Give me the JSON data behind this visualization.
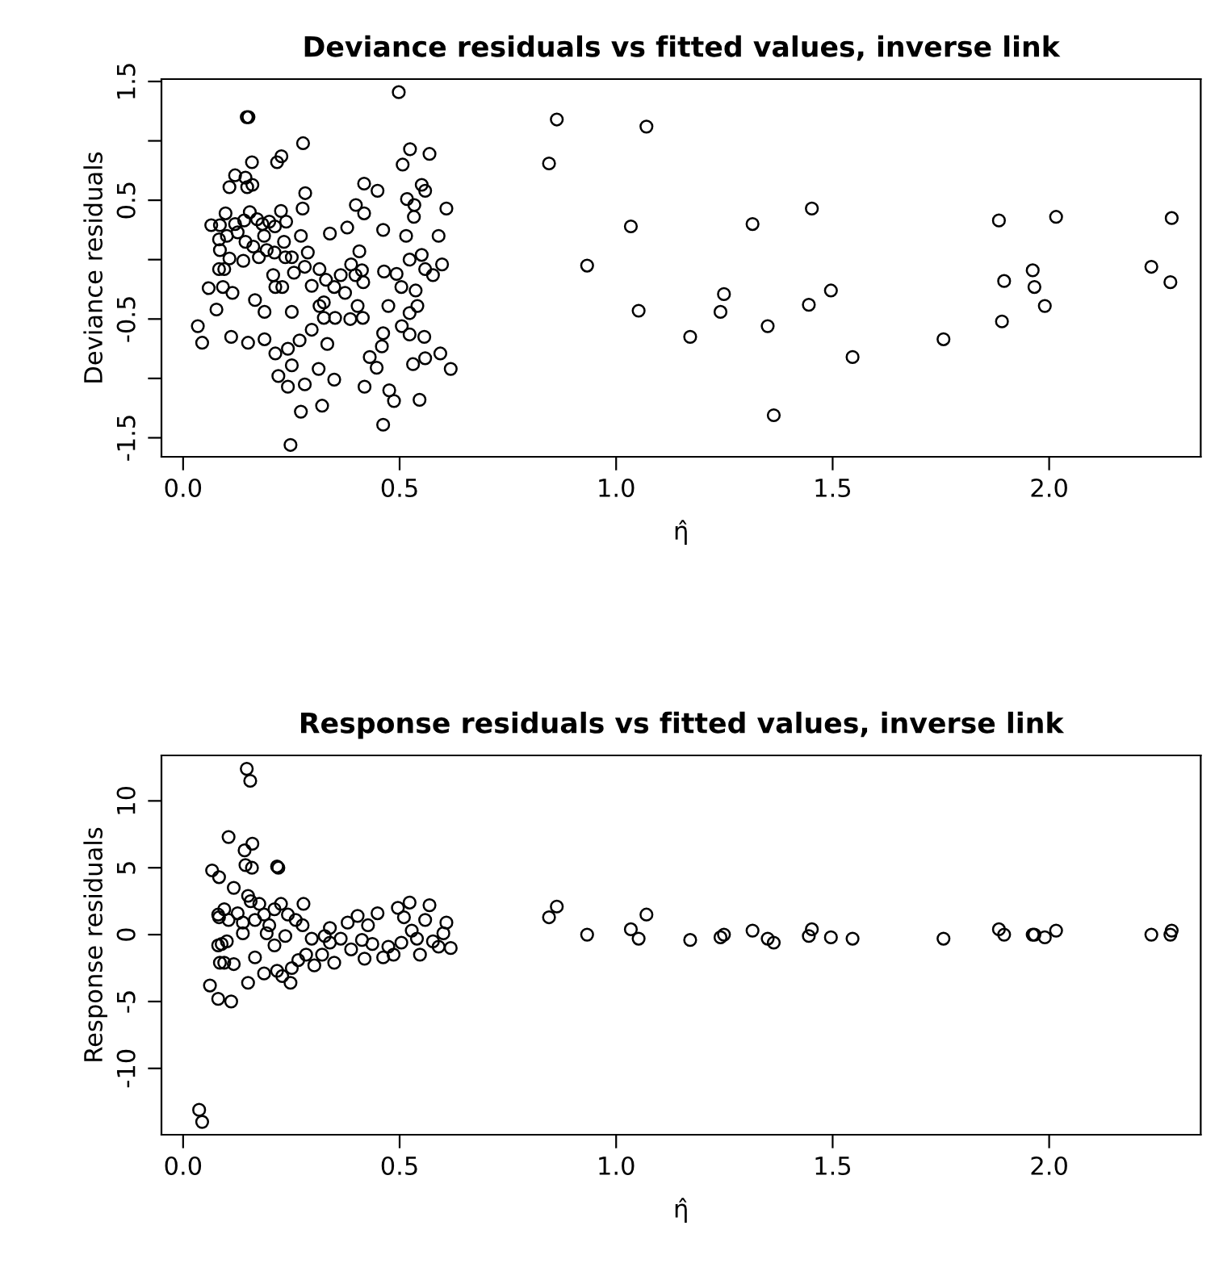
{
  "chart_data": [
    {
      "type": "scatter",
      "title": "Deviance residuals vs fitted values, inverse link",
      "xlabel": "η̂",
      "ylabel": "Deviance residuals",
      "marker": "circle",
      "xlim": [
        -0.05,
        2.35
      ],
      "xticks": [
        {
          "value": 0,
          "label": "0.0"
        },
        {
          "value": 0.5,
          "label": "0.5"
        },
        {
          "value": 1,
          "label": "1.0"
        },
        {
          "value": 1.5,
          "label": "1.5"
        },
        {
          "value": 2,
          "label": "2.0"
        }
      ],
      "ylim": [
        -1.66,
        1.52
      ],
      "yticks": [
        {
          "value": -1.5,
          "label": "-1.5"
        },
        {
          "value": -1,
          "label": null
        },
        {
          "value": -0.5,
          "label": "-0.5"
        },
        {
          "value": 0,
          "label": null
        },
        {
          "value": 0.5,
          "label": "0.5"
        },
        {
          "value": 1,
          "label": null
        },
        {
          "value": 1.5,
          "label": "1.5"
        }
      ],
      "series": [
        {
          "color": "#000000",
          "x": [
            0.863,
            1.07,
            0.845,
            1.452,
            1.034,
            1.315,
            1.884,
            2.016,
            2.283,
            0.933,
            1.962,
            2.236,
            1.896,
            1.966,
            2.28,
            1.249,
            1.496,
            1.052,
            1.241,
            1.445,
            1.99,
            1.891,
            1.35,
            1.171,
            1.756,
            1.546,
            1.364,
            0.498,
            0.147,
            0.151,
            0.277,
            0.524,
            0.569,
            0.507,
            0.227,
            0.217,
            0.159,
            0.12,
            0.144,
            0.107,
            0.148,
            0.16,
            0.418,
            0.449,
            0.551,
            0.559,
            0.517,
            0.534,
            0.282,
            0.276,
            0.399,
            0.418,
            0.608,
            0.533,
            0.462,
            0.379,
            0.339,
            0.272,
            0.515,
            0.59,
            0.065,
            0.085,
            0.098,
            0.12,
            0.141,
            0.154,
            0.171,
            0.183,
            0.199,
            0.212,
            0.226,
            0.238,
            0.083,
            0.101,
            0.126,
            0.144,
            0.162,
            0.187,
            0.193,
            0.211,
            0.233,
            0.085,
            0.107,
            0.139,
            0.175,
            0.236,
            0.251,
            0.288,
            0.407,
            0.523,
            0.551,
            0.083,
            0.095,
            0.059,
            0.092,
            0.114,
            0.166,
            0.188,
            0.208,
            0.213,
            0.229,
            0.256,
            0.281,
            0.297,
            0.315,
            0.33,
            0.349,
            0.325,
            0.364,
            0.388,
            0.398,
            0.413,
            0.416,
            0.374,
            0.403,
            0.415,
            0.386,
            0.351,
            0.325,
            0.464,
            0.493,
            0.504,
            0.537,
            0.559,
            0.577,
            0.598,
            0.474,
            0.523,
            0.541,
            0.251,
            0.315,
            0.077,
            0.034,
            0.044,
            0.111,
            0.15,
            0.188,
            0.213,
            0.242,
            0.251,
            0.269,
            0.297,
            0.333,
            0.313,
            0.349,
            0.22,
            0.242,
            0.281,
            0.272,
            0.321,
            0.248,
            0.419,
            0.431,
            0.447,
            0.459,
            0.462,
            0.505,
            0.523,
            0.557,
            0.531,
            0.559,
            0.594,
            0.618,
            0.476,
            0.487,
            0.546,
            0.462
          ],
          "values": [
            1.18,
            1.12,
            0.81,
            0.43,
            0.28,
            0.3,
            0.33,
            0.36,
            0.35,
            -0.05,
            -0.09,
            -0.06,
            -0.18,
            -0.23,
            -0.19,
            -0.29,
            -0.26,
            -0.43,
            -0.44,
            -0.38,
            -0.39,
            -0.52,
            -0.56,
            -0.65,
            -0.67,
            -0.82,
            -1.31,
            1.41,
            1.2,
            1.2,
            0.98,
            0.93,
            0.89,
            0.8,
            0.87,
            0.82,
            0.82,
            0.71,
            0.69,
            0.61,
            0.61,
            0.63,
            0.64,
            0.58,
            0.63,
            0.58,
            0.51,
            0.46,
            0.56,
            0.43,
            0.46,
            0.39,
            0.43,
            0.36,
            0.25,
            0.27,
            0.22,
            0.2,
            0.2,
            0.2,
            0.29,
            0.29,
            0.39,
            0.3,
            0.33,
            0.4,
            0.34,
            0.3,
            0.32,
            0.28,
            0.41,
            0.32,
            0.17,
            0.2,
            0.23,
            0.15,
            0.11,
            0.2,
            0.08,
            0.06,
            0.15,
            0.08,
            0.01,
            -0.01,
            0.02,
            0.02,
            0.02,
            0.06,
            0.07,
            0.0,
            0.04,
            -0.08,
            -0.08,
            -0.24,
            -0.23,
            -0.28,
            -0.34,
            -0.44,
            -0.13,
            -0.23,
            -0.23,
            -0.11,
            -0.06,
            -0.22,
            -0.08,
            -0.17,
            -0.23,
            -0.36,
            -0.13,
            -0.04,
            -0.13,
            -0.09,
            -0.19,
            -0.28,
            -0.39,
            -0.49,
            -0.5,
            -0.49,
            -0.49,
            -0.1,
            -0.12,
            -0.23,
            -0.26,
            -0.08,
            -0.13,
            -0.04,
            -0.39,
            -0.45,
            -0.39,
            -0.44,
            -0.39,
            -0.42,
            -0.56,
            -0.7,
            -0.65,
            -0.7,
            -0.67,
            -0.79,
            -0.75,
            -0.89,
            -0.68,
            -0.59,
            -0.71,
            -0.92,
            -1.01,
            -0.98,
            -1.07,
            -1.05,
            -1.28,
            -1.23,
            -1.56,
            -1.07,
            -0.82,
            -0.91,
            -0.73,
            -0.62,
            -0.56,
            -0.63,
            -0.65,
            -0.88,
            -0.83,
            -0.79,
            -0.92,
            -1.1,
            -1.19,
            -1.18,
            -1.39
          ]
        }
      ]
    },
    {
      "type": "scatter",
      "title": "Response residuals vs fitted values, inverse link",
      "xlabel": "η̂",
      "ylabel": "Response residuals",
      "marker": "circle",
      "xlim": [
        -0.05,
        2.35
      ],
      "xticks": [
        {
          "value": 0,
          "label": "0.0"
        },
        {
          "value": 0.5,
          "label": "0.5"
        },
        {
          "value": 1,
          "label": "1.0"
        },
        {
          "value": 1.5,
          "label": "1.5"
        },
        {
          "value": 2,
          "label": "2.0"
        }
      ],
      "ylim": [
        -14.96,
        13.4
      ],
      "yticks": [
        -10,
        -5,
        0,
        5,
        10
      ],
      "series": [
        {
          "color": "#000000",
          "x": [
            0.147,
            0.155,
            0.105,
            0.142,
            0.16,
            0.144,
            0.159,
            0.217,
            0.22,
            0.067,
            0.083,
            0.117,
            0.15,
            0.156,
            0.176,
            0.081,
            0.095,
            0.105,
            0.126,
            0.138,
            0.166,
            0.187,
            0.199,
            0.211,
            0.226,
            0.242,
            0.26,
            0.278,
            0.276,
            0.138,
            0.083,
            0.081,
            0.089,
            0.101,
            0.085,
            0.095,
            0.117,
            0.166,
            0.187,
            0.211,
            0.217,
            0.229,
            0.248,
            0.15,
            0.062,
            0.081,
            0.111,
            0.251,
            0.266,
            0.284,
            0.297,
            0.303,
            0.321,
            0.327,
            0.339,
            0.349,
            0.339,
            0.364,
            0.38,
            0.388,
            0.403,
            0.413,
            0.419,
            0.427,
            0.449,
            0.462,
            0.474,
            0.486,
            0.496,
            0.51,
            0.523,
            0.528,
            0.54,
            0.547,
            0.559,
            0.569,
            0.577,
            0.59,
            0.601,
            0.608,
            0.618,
            0.037,
            0.044,
            0.193,
            0.236,
            0.437,
            0.504,
            0.863,
            0.845,
            0.933,
            1.034,
            1.07,
            1.052,
            1.171,
            1.241,
            1.249,
            1.315,
            1.35,
            1.364,
            1.445,
            1.452,
            1.496,
            1.546,
            1.756,
            1.884,
            1.896,
            1.962,
            1.966,
            1.99,
            2.016,
            2.236,
            2.28,
            2.283
          ],
          "values": [
            12.4,
            11.5,
            7.3,
            6.3,
            6.8,
            5.2,
            5.0,
            5.1,
            5.0,
            4.8,
            4.3,
            3.5,
            2.9,
            2.5,
            2.3,
            1.5,
            1.9,
            1.1,
            1.6,
            0.9,
            1.1,
            1.5,
            0.7,
            1.9,
            2.3,
            1.5,
            1.1,
            2.3,
            0.7,
            0.1,
            1.3,
            -0.8,
            -0.7,
            -0.5,
            -2.1,
            -2.1,
            -2.2,
            -1.7,
            -2.9,
            -0.8,
            -2.7,
            -3.1,
            -3.6,
            -3.6,
            -3.8,
            -4.8,
            -5.0,
            -2.5,
            -1.9,
            -1.5,
            -0.3,
            -2.3,
            -1.5,
            -0.1,
            -0.6,
            -2.1,
            0.5,
            -0.3,
            0.9,
            -1.1,
            1.4,
            -0.4,
            -1.8,
            0.7,
            1.6,
            -1.7,
            -0.9,
            -1.5,
            2.0,
            1.3,
            2.4,
            0.3,
            -0.3,
            -1.5,
            1.1,
            2.2,
            -0.5,
            -0.9,
            0.1,
            0.9,
            -1.0,
            -13.1,
            -14.0,
            0.1,
            -0.1,
            -0.7,
            -0.6,
            2.1,
            1.3,
            0.0,
            0.4,
            1.5,
            -0.3,
            -0.4,
            -0.2,
            0.0,
            0.3,
            -0.3,
            -0.6,
            -0.1,
            0.4,
            -0.2,
            -0.3,
            -0.3,
            0.4,
            0.0,
            0.0,
            0.0,
            -0.2,
            0.3,
            0.0,
            0.0,
            0.3
          ]
        }
      ]
    }
  ]
}
